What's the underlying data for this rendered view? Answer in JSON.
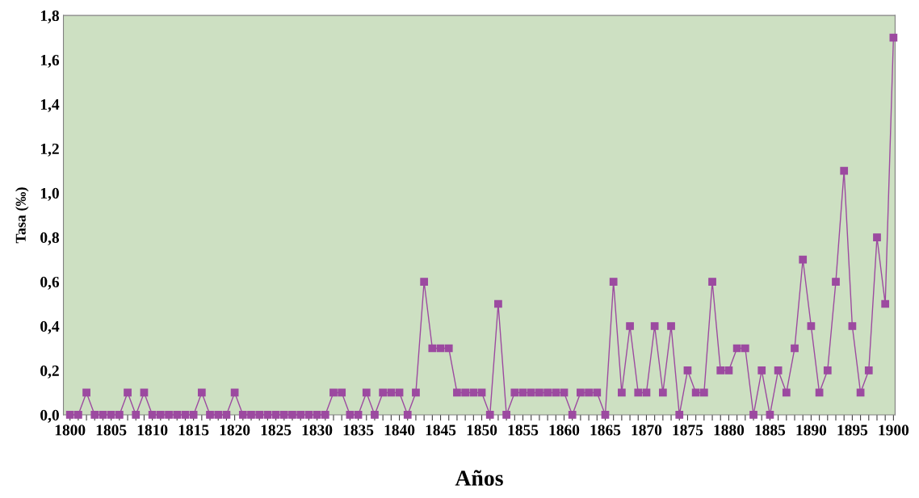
{
  "chart_data": {
    "type": "line",
    "xlabel": "Años",
    "ylabel": "Tasa (‰)",
    "x": [
      1800,
      1801,
      1802,
      1803,
      1804,
      1805,
      1806,
      1807,
      1808,
      1809,
      1810,
      1811,
      1812,
      1813,
      1814,
      1815,
      1816,
      1817,
      1818,
      1819,
      1820,
      1821,
      1822,
      1823,
      1824,
      1825,
      1826,
      1827,
      1828,
      1829,
      1830,
      1831,
      1832,
      1833,
      1834,
      1835,
      1836,
      1837,
      1838,
      1839,
      1840,
      1841,
      1842,
      1843,
      1844,
      1845,
      1846,
      1847,
      1848,
      1849,
      1850,
      1851,
      1852,
      1853,
      1854,
      1855,
      1856,
      1857,
      1858,
      1859,
      1860,
      1861,
      1862,
      1863,
      1864,
      1865,
      1866,
      1867,
      1868,
      1869,
      1870,
      1871,
      1872,
      1873,
      1874,
      1875,
      1876,
      1877,
      1878,
      1879,
      1880,
      1881,
      1882,
      1883,
      1884,
      1885,
      1886,
      1887,
      1888,
      1889,
      1890,
      1891,
      1892,
      1893,
      1894,
      1895,
      1896,
      1897,
      1898,
      1899,
      1900
    ],
    "series": [
      {
        "color": "#9c4aa0",
        "values": [
          0,
          0,
          0.1,
          0,
          0,
          0,
          0,
          0.1,
          0,
          0.1,
          0,
          0,
          0,
          0,
          0,
          0,
          0.1,
          0,
          0,
          0,
          0.1,
          0,
          0,
          0,
          0,
          0,
          0,
          0,
          0,
          0,
          0,
          0,
          0.1,
          0.1,
          0,
          0,
          0.1,
          0,
          0.1,
          0.1,
          0.1,
          0,
          0.1,
          0.6,
          0.3,
          0.3,
          0.3,
          0.1,
          0.1,
          0.1,
          0.1,
          0,
          0.5,
          0,
          0.1,
          0.1,
          0.1,
          0.1,
          0.1,
          0.1,
          0.1,
          0,
          0.1,
          0.1,
          0.1,
          0,
          0.6,
          0.1,
          0.4,
          0.1,
          0.1,
          0.4,
          0.1,
          0.4,
          0,
          0.2,
          0.1,
          0.1,
          0.6,
          0.2,
          0.2,
          0.3,
          0.3,
          0,
          0.2,
          0,
          0.2,
          0.1,
          0.3,
          0.7,
          0.4,
          0.1,
          0.2,
          0.6,
          1.1,
          0.4,
          0.1,
          0.2,
          0.8,
          0.5,
          1.7
        ]
      }
    ],
    "marker": "square",
    "line_style": "solid",
    "xlim": [
      1799.2,
      1900.2
    ],
    "ylim": [
      0,
      1.8
    ],
    "yticks": [
      {
        "value": 0,
        "label": "0,0"
      },
      {
        "value": 0.2,
        "label": "0,2"
      },
      {
        "value": 0.4,
        "label": "0,4"
      },
      {
        "value": 0.6,
        "label": "0,6"
      },
      {
        "value": 0.8,
        "label": "0,8"
      },
      {
        "value": 1.0,
        "label": "1,0"
      },
      {
        "value": 1.2,
        "label": "1,2"
      },
      {
        "value": 1.4,
        "label": "1,4"
      },
      {
        "value": 1.6,
        "label": "1,6"
      },
      {
        "value": 1.8,
        "label": "1,8"
      }
    ],
    "xticks": [
      1800,
      {
        "value": 1801,
        "label": null
      },
      {
        "value": 1802,
        "label": null
      },
      {
        "value": 1803,
        "label": null
      },
      {
        "value": 1804,
        "label": null
      },
      1805,
      {
        "value": 1806,
        "label": null
      },
      {
        "value": 1807,
        "label": null
      },
      {
        "value": 1808,
        "label": null
      },
      {
        "value": 1809,
        "label": null
      },
      1810,
      {
        "value": 1811,
        "label": null
      },
      {
        "value": 1812,
        "label": null
      },
      {
        "value": 1813,
        "label": null
      },
      {
        "value": 1814,
        "label": null
      },
      1815,
      {
        "value": 1816,
        "label": null
      },
      {
        "value": 1817,
        "label": null
      },
      {
        "value": 1818,
        "label": null
      },
      {
        "value": 1819,
        "label": null
      },
      1820,
      {
        "value": 1821,
        "label": null
      },
      {
        "value": 1822,
        "label": null
      },
      {
        "value": 1823,
        "label": null
      },
      {
        "value": 1824,
        "label": null
      },
      1825,
      {
        "value": 1826,
        "label": null
      },
      {
        "value": 1827,
        "label": null
      },
      {
        "value": 1828,
        "label": null
      },
      {
        "value": 1829,
        "label": null
      },
      1830,
      {
        "value": 1831,
        "label": null
      },
      {
        "value": 1832,
        "label": null
      },
      {
        "value": 1833,
        "label": null
      },
      {
        "value": 1834,
        "label": null
      },
      1835,
      {
        "value": 1836,
        "label": null
      },
      {
        "value": 1837,
        "label": null
      },
      {
        "value": 1838,
        "label": null
      },
      {
        "value": 1839,
        "label": null
      },
      1840,
      {
        "value": 1841,
        "label": null
      },
      {
        "value": 1842,
        "label": null
      },
      {
        "value": 1843,
        "label": null
      },
      {
        "value": 1844,
        "label": null
      },
      1845,
      {
        "value": 1846,
        "label": null
      },
      {
        "value": 1847,
        "label": null
      },
      {
        "value": 1848,
        "label": null
      },
      {
        "value": 1849,
        "label": null
      },
      1850,
      {
        "value": 1851,
        "label": null
      },
      {
        "value": 1852,
        "label": null
      },
      {
        "value": 1853,
        "label": null
      },
      {
        "value": 1854,
        "label": null
      },
      1855,
      {
        "value": 1856,
        "label": null
      },
      {
        "value": 1857,
        "label": null
      },
      {
        "value": 1858,
        "label": null
      },
      {
        "value": 1859,
        "label": null
      },
      1860,
      {
        "value": 1861,
        "label": null
      },
      {
        "value": 1862,
        "label": null
      },
      {
        "value": 1863,
        "label": null
      },
      {
        "value": 1864,
        "label": null
      },
      1865,
      {
        "value": 1866,
        "label": null
      },
      {
        "value": 1867,
        "label": null
      },
      {
        "value": 1868,
        "label": null
      },
      {
        "value": 1869,
        "label": null
      },
      1870,
      {
        "value": 1871,
        "label": null
      },
      {
        "value": 1872,
        "label": null
      },
      {
        "value": 1873,
        "label": null
      },
      {
        "value": 1874,
        "label": null
      },
      1875,
      {
        "value": 1876,
        "label": null
      },
      {
        "value": 1877,
        "label": null
      },
      {
        "value": 1878,
        "label": null
      },
      {
        "value": 1879,
        "label": null
      },
      1880,
      {
        "value": 1881,
        "label": null
      },
      {
        "value": 1882,
        "label": null
      },
      {
        "value": 1883,
        "label": null
      },
      {
        "value": 1884,
        "label": null
      },
      1885,
      {
        "value": 1886,
        "label": null
      },
      {
        "value": 1887,
        "label": null
      },
      {
        "value": 1888,
        "label": null
      },
      {
        "value": 1889,
        "label": null
      },
      1890,
      {
        "value": 1891,
        "label": null
      },
      {
        "value": 1892,
        "label": null
      },
      {
        "value": 1893,
        "label": null
      },
      {
        "value": 1894,
        "label": null
      },
      1895,
      {
        "value": 1896,
        "label": null
      },
      {
        "value": 1897,
        "label": null
      },
      {
        "value": 1898,
        "label": null
      },
      {
        "value": 1899,
        "label": null
      },
      1900
    ]
  }
}
